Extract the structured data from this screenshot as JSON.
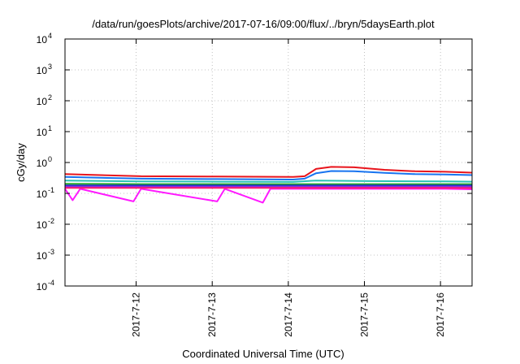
{
  "chart_data": {
    "type": "line",
    "title": "/data/run/goesPlots/archive/2017-07-16/09:00/flux/../bryn/5daysEarth.plot",
    "xlabel": "Coordinated Universal Time (UTC)",
    "ylabel": "cGy/day",
    "x_range_days": [
      0,
      5.35
    ],
    "x_ticks": [
      {
        "label": "2017-7-12",
        "day": 0.935
      },
      {
        "label": "2017-7-13",
        "day": 1.935
      },
      {
        "label": "2017-7-14",
        "day": 2.935
      },
      {
        "label": "2017-7-15",
        "day": 3.935
      },
      {
        "label": "2017-7-16",
        "day": 4.935
      }
    ],
    "y_scale": "log",
    "ylim": [
      0.0001,
      10000
    ],
    "y_ticks": [
      {
        "base": "10",
        "exp": "-4",
        "value": 0.0001
      },
      {
        "base": "10",
        "exp": "-3",
        "value": 0.001
      },
      {
        "base": "10",
        "exp": "-2",
        "value": 0.01
      },
      {
        "base": "10",
        "exp": "-1",
        "value": 0.1
      },
      {
        "base": "10",
        "exp": "0",
        "value": 1
      },
      {
        "base": "10",
        "exp": "1",
        "value": 10
      },
      {
        "base": "10",
        "exp": "2",
        "value": 100
      },
      {
        "base": "10",
        "exp": "3",
        "value": 1000
      },
      {
        "base": "10",
        "exp": "4",
        "value": 10000
      }
    ],
    "grid": true,
    "series": [
      {
        "color": "#e8141c",
        "points": [
          [
            0,
            0.42
          ],
          [
            1,
            0.36
          ],
          [
            2,
            0.35
          ],
          [
            3,
            0.34
          ],
          [
            3.15,
            0.36
          ],
          [
            3.3,
            0.62
          ],
          [
            3.5,
            0.72
          ],
          [
            3.8,
            0.7
          ],
          [
            4.2,
            0.58
          ],
          [
            4.6,
            0.52
          ],
          [
            5.0,
            0.5
          ],
          [
            5.35,
            0.47
          ]
        ]
      },
      {
        "color": "#1874f0",
        "points": [
          [
            0,
            0.34
          ],
          [
            1,
            0.3
          ],
          [
            2,
            0.29
          ],
          [
            3,
            0.28
          ],
          [
            3.15,
            0.3
          ],
          [
            3.3,
            0.45
          ],
          [
            3.5,
            0.53
          ],
          [
            3.8,
            0.52
          ],
          [
            4.2,
            0.46
          ],
          [
            4.6,
            0.42
          ],
          [
            5.0,
            0.41
          ],
          [
            5.35,
            0.39
          ]
        ]
      },
      {
        "color": "#27c2b4",
        "points": [
          [
            0,
            0.26
          ],
          [
            1,
            0.245
          ],
          [
            2,
            0.24
          ],
          [
            3,
            0.235
          ],
          [
            3.3,
            0.26
          ],
          [
            4,
            0.25
          ],
          [
            5,
            0.245
          ],
          [
            5.35,
            0.24
          ]
        ]
      },
      {
        "color": "#24a824",
        "points": [
          [
            0,
            0.205
          ],
          [
            1,
            0.2
          ],
          [
            2,
            0.2
          ],
          [
            3,
            0.2
          ],
          [
            4,
            0.2
          ],
          [
            5,
            0.2
          ],
          [
            5.35,
            0.2
          ]
        ]
      },
      {
        "color": "#2030c8",
        "points": [
          [
            0,
            0.18
          ],
          [
            1,
            0.18
          ],
          [
            2,
            0.18
          ],
          [
            3,
            0.18
          ],
          [
            4,
            0.18
          ],
          [
            5,
            0.18
          ],
          [
            5.35,
            0.18
          ]
        ]
      },
      {
        "color": "#8a2be2",
        "points": [
          [
            0,
            0.165
          ],
          [
            1,
            0.165
          ],
          [
            2,
            0.165
          ],
          [
            3,
            0.165
          ],
          [
            4,
            0.165
          ],
          [
            5,
            0.165
          ],
          [
            5.35,
            0.165
          ]
        ]
      },
      {
        "color": "#ff1aff",
        "points": [
          [
            0,
            0.14
          ],
          [
            0.1,
            0.06
          ],
          [
            0.2,
            0.14
          ],
          [
            0.9,
            0.055
          ],
          [
            1,
            0.14
          ],
          [
            2.0,
            0.055
          ],
          [
            2.1,
            0.14
          ],
          [
            2.6,
            0.05
          ],
          [
            2.7,
            0.14
          ],
          [
            3,
            0.14
          ],
          [
            4,
            0.14
          ],
          [
            5,
            0.14
          ],
          [
            5.35,
            0.135
          ]
        ]
      },
      {
        "color": "#ff1a6e",
        "points": [
          [
            0,
            0.15
          ],
          [
            1,
            0.15
          ],
          [
            2,
            0.15
          ],
          [
            3,
            0.15
          ],
          [
            4,
            0.15
          ],
          [
            5,
            0.15
          ],
          [
            5.35,
            0.148
          ]
        ]
      }
    ]
  }
}
